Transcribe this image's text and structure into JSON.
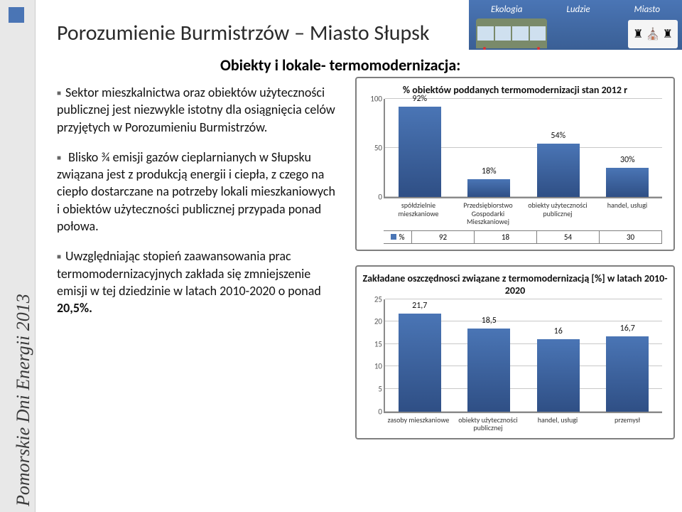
{
  "sidebar_text": "Pomorskie Dni Energii 2013",
  "banner": {
    "tabs": [
      "Ekologia",
      "Ludzie",
      "Miasto"
    ]
  },
  "title": "Porozumienie Burmistrzów – Miasto Słupsk",
  "subtitle": "Obiekty i lokale- termomodernizacja:",
  "paragraphs": {
    "p1": "Sektor mieszkalnictwa oraz obiektów użyteczności publicznej jest niezwykle istotny dla osiągnięcia celów przyjętych w Porozumieniu Burmistrzów.",
    "p2": " Blisko ¾ emisji gazów cieplarnianych w Słupsku związana jest z produkcją energii i ciepła, z czego na ciepło dostarczane na potrzeby lokali mieszkaniowych i obiektów użyteczności publicznej przypada ponad połowa.",
    "p3_prefix": "Uwzględniając stopień zaawansowania prac termomodernizacyjnych zakłada się zmniejszenie emisji w tej dziedzinie w latach 2010-2020 o ponad ",
    "p3_bold": "20,5%."
  },
  "chart1": {
    "title": "% obiektów poddanych termomodernizacji stan 2012 r",
    "yticks": [
      "0",
      "50",
      "100"
    ],
    "ymax": 100,
    "legend_label": "%",
    "categories": [
      "spółdzielnie mieszkaniowe",
      "Przedsiębiorstwo Gospodarki Mieszkaniowej",
      "obiekty użyteczności publicznej",
      "handel, usługi"
    ],
    "values": [
      92,
      18,
      54,
      30
    ],
    "value_labels": [
      "92%",
      "18%",
      "54%",
      "30%"
    ],
    "bar_color": "#4a75b5",
    "grid_color": "#c8c8c8"
  },
  "chart2": {
    "title": "Zakładane oszczędnosci związane z termomodernizacją [%] w latach 2010-2020",
    "yticks": [
      "0",
      "5",
      "10",
      "15",
      "20",
      "25"
    ],
    "ymax": 25,
    "categories": [
      "zasoby mieszkaniowe",
      "obiekty użyteczności publicznej",
      "handel, usługi",
      "przemysł"
    ],
    "values": [
      21.7,
      18.5,
      16,
      16.7
    ],
    "value_labels": [
      "21,7",
      "18,5",
      "16",
      "16,7"
    ],
    "bar_color": "#4a75b5",
    "grid_color": "#c8c8c8"
  }
}
